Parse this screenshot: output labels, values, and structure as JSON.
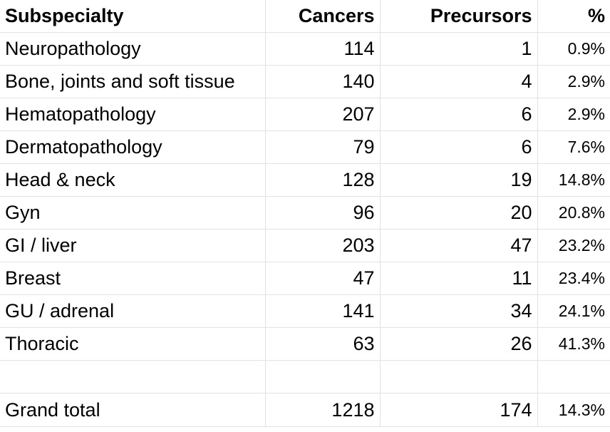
{
  "headers": {
    "subspecialty": "Subspecialty",
    "cancers": "Cancers",
    "precursors": "Precursors",
    "percent": "%"
  },
  "rows": [
    {
      "subspecialty": "Neuropathology",
      "cancers": "114",
      "precursors": "1",
      "percent": "0.9%"
    },
    {
      "subspecialty": "Bone, joints and soft tissue",
      "cancers": "140",
      "precursors": "4",
      "percent": "2.9%"
    },
    {
      "subspecialty": "Hematopathology",
      "cancers": "207",
      "precursors": "6",
      "percent": "2.9%"
    },
    {
      "subspecialty": "Dermatopathology",
      "cancers": "79",
      "precursors": "6",
      "percent": "7.6%"
    },
    {
      "subspecialty": "Head & neck",
      "cancers": "128",
      "precursors": "19",
      "percent": "14.8%"
    },
    {
      "subspecialty": "Gyn",
      "cancers": "96",
      "precursors": "20",
      "percent": "20.8%"
    },
    {
      "subspecialty": "GI / liver",
      "cancers": "203",
      "precursors": "47",
      "percent": "23.2%"
    },
    {
      "subspecialty": "Breast",
      "cancers": "47",
      "precursors": "11",
      "percent": "23.4%"
    },
    {
      "subspecialty": "GU / adrenal",
      "cancers": "141",
      "precursors": "34",
      "percent": "24.1%"
    },
    {
      "subspecialty": "Thoracic",
      "cancers": "63",
      "precursors": "26",
      "percent": "41.3%"
    }
  ],
  "total": {
    "subspecialty": "Grand total",
    "cancers": "1218",
    "precursors": "174",
    "percent": "14.3%"
  }
}
